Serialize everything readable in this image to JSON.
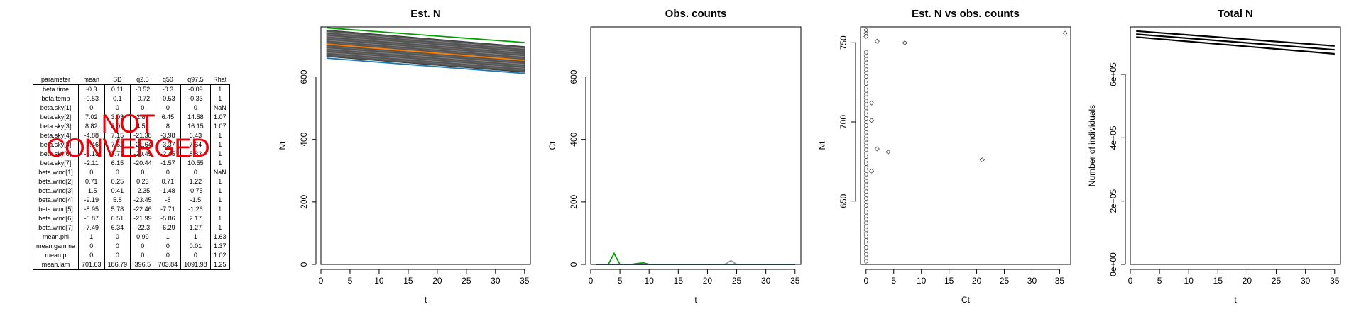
{
  "table": {
    "headers": [
      "parameter",
      "mean",
      "SD",
      "q2.5",
      "q50",
      "q97.5",
      "Rhat"
    ],
    "rows": [
      [
        "beta.time",
        "-0.3",
        "0.11",
        "-0.52",
        "-0.3",
        "-0.09",
        "1"
      ],
      [
        "beta.temp",
        "-0.53",
        "0.1",
        "-0.72",
        "-0.53",
        "-0.33",
        "1"
      ],
      [
        "beta.sky[1]",
        "0",
        "0",
        "0",
        "0",
        "0",
        "NaN"
      ],
      [
        "beta.sky[2]",
        "7.02",
        "3.03",
        "2.87",
        "6.45",
        "14.58",
        "1.07"
      ],
      [
        "beta.sky[3]",
        "8.82",
        "3.01",
        "4.53",
        "8",
        "16.15",
        "1.07"
      ],
      [
        "beta.sky[4]",
        "-4.88",
        "7.15",
        "-21.38",
        "-3.98",
        "6.43",
        "1"
      ],
      [
        "beta.sky[5]",
        "-4.46",
        "7.62",
        "-21.64",
        "-3.37",
        "7.64",
        "1"
      ],
      [
        "beta.sky[6]",
        "-3.18",
        "7.77",
        "-20.45",
        "-2.45",
        "8.83",
        "1"
      ],
      [
        "beta.sky[7]",
        "-2.11",
        "6.15",
        "-20.44",
        "-1.57",
        "10.55",
        "1"
      ],
      [
        "beta.wind[1]",
        "0",
        "0",
        "0",
        "0",
        "0",
        "NaN"
      ],
      [
        "beta.wind[2]",
        "0.71",
        "0.25",
        "0.23",
        "0.71",
        "1.22",
        "1"
      ],
      [
        "beta.wind[3]",
        "-1.5",
        "0.41",
        "-2.35",
        "-1.48",
        "-0.75",
        "1"
      ],
      [
        "beta.wind[4]",
        "-9.19",
        "5.8",
        "-23.45",
        "-8",
        "-1.5",
        "1"
      ],
      [
        "beta.wind[5]",
        "-8.95",
        "5.78",
        "-22.46",
        "-7.71",
        "-1.26",
        "1"
      ],
      [
        "beta.wind[6]",
        "-6.87",
        "6.51",
        "-21.99",
        "-5.86",
        "2.17",
        "1"
      ],
      [
        "beta.wind[7]",
        "-7.49",
        "6.34",
        "-22.3",
        "-6.29",
        "1.27",
        "1"
      ],
      [
        "mean.phi",
        "1",
        "0",
        "0.99",
        "1",
        "1",
        "1.63"
      ],
      [
        "mean.gamma",
        "0",
        "0",
        "0",
        "0",
        "0.01",
        "1.37"
      ],
      [
        "mean.p",
        "0",
        "0",
        "0",
        "0",
        "0",
        "1.02"
      ],
      [
        "mean.lam",
        "701.63",
        "186.79",
        "396.5",
        "703.84",
        "1091.98",
        "1.25"
      ]
    ]
  },
  "stamp": {
    "line1": "NOT",
    "line2": "CONVERGED",
    "color": "#e8000b"
  },
  "chart_data": [
    {
      "type": "line",
      "title": "Est. N",
      "xlabel": "t",
      "ylabel": "Nt",
      "xlim": [
        0,
        36
      ],
      "ylim": [
        0,
        760
      ],
      "xticks": [
        0,
        5,
        10,
        15,
        20,
        25,
        30,
        35
      ],
      "yticks": [
        0,
        200,
        400,
        600
      ],
      "x": [
        1,
        35
      ],
      "series": [
        {
          "color": "#00a000",
          "values": [
            757,
            710
          ]
        },
        {
          "color": "#ff7f00",
          "values": [
            705,
            653
          ]
        },
        {
          "color": "#1f78b4",
          "values": [
            660,
            611
          ]
        }
      ],
      "band": {
        "color": "#555555",
        "upper": [
          750,
          697
        ],
        "lower": [
          665,
          615
        ]
      }
    },
    {
      "type": "line",
      "title": "Obs. counts",
      "xlabel": "t",
      "ylabel": "Ct",
      "xlim": [
        0,
        36
      ],
      "ylim": [
        0,
        760
      ],
      "xticks": [
        0,
        5,
        10,
        15,
        20,
        25,
        30,
        35
      ],
      "yticks": [
        0,
        200,
        400,
        600
      ],
      "x": [
        1,
        2,
        3,
        4,
        5,
        6,
        7,
        8,
        9,
        10,
        11,
        12,
        13,
        14,
        15,
        16,
        17,
        18,
        19,
        20,
        21,
        22,
        23,
        24,
        25,
        26,
        27,
        28,
        29,
        30,
        31,
        32,
        33,
        34,
        35
      ],
      "series": [
        {
          "color": "#999999",
          "values": [
            0,
            0,
            0,
            0,
            0,
            0,
            0,
            0,
            0,
            0,
            0,
            0,
            0,
            0,
            0,
            0,
            0,
            0,
            0,
            0,
            0,
            0,
            0,
            12,
            0,
            0,
            0,
            0,
            0,
            0,
            0,
            0,
            0,
            0,
            0
          ]
        },
        {
          "color": "#00a000",
          "values": [
            0,
            0,
            0,
            35,
            0,
            0,
            0,
            3,
            5,
            0,
            0,
            0,
            0,
            0,
            0,
            0,
            0,
            0,
            0,
            0,
            0,
            0,
            0,
            0,
            0,
            0,
            0,
            0,
            0,
            0,
            0,
            0,
            0,
            0,
            0
          ]
        },
        {
          "color": "#ff7f00",
          "values": [
            0,
            0,
            0,
            0,
            0,
            0,
            0,
            0,
            0,
            0,
            0,
            0,
            0,
            0,
            0,
            0,
            0,
            0,
            0,
            0,
            0,
            0,
            0,
            0,
            0,
            0,
            0,
            0,
            0,
            0,
            0,
            0,
            0,
            0,
            0
          ]
        },
        {
          "color": "#1f78b4",
          "values": [
            0,
            0,
            0,
            0,
            0,
            0,
            0,
            0,
            0,
            0,
            0,
            0,
            0,
            0,
            0,
            0,
            0,
            0,
            0,
            0,
            0,
            0,
            0,
            0,
            0,
            0,
            0,
            0,
            0,
            0,
            0,
            0,
            0,
            0,
            0
          ]
        }
      ]
    },
    {
      "type": "scatter",
      "title": "Est. N vs obs. counts",
      "xlabel": "Ct",
      "ylabel": "Nt",
      "xlim": [
        -1,
        37
      ],
      "ylim": [
        610,
        760
      ],
      "xticks": [
        0,
        5,
        10,
        15,
        20,
        25,
        30,
        35
      ],
      "yticks": [
        650,
        700,
        750
      ],
      "points": [
        [
          0,
          758
        ],
        [
          0,
          756
        ],
        [
          0,
          754
        ],
        [
          1,
          712
        ],
        [
          1,
          701
        ],
        [
          1,
          669
        ],
        [
          2,
          751
        ],
        [
          2,
          683
        ],
        [
          4,
          681
        ],
        [
          7,
          750
        ],
        [
          21,
          676
        ],
        [
          36,
          756
        ]
      ],
      "column_at_zero": {
        "x": 0,
        "from": 612,
        "to": 745
      }
    },
    {
      "type": "line",
      "title": "Total N",
      "xlabel": "t",
      "ylabel": "Number of individuals",
      "xlim": [
        0,
        36
      ],
      "ylim": [
        0,
        750000
      ],
      "xticks": [
        0,
        5,
        10,
        15,
        20,
        25,
        30,
        35
      ],
      "yticks": [
        0,
        200000,
        400000,
        600000
      ],
      "ytick_labels": [
        "0e+00",
        "2e+05",
        "4e+05",
        "6e+05"
      ],
      "x": [
        1,
        35
      ],
      "series": [
        {
          "color": "#000000",
          "values": [
            737000,
            690000
          ]
        },
        {
          "color": "#000000",
          "values": [
            727000,
            678000
          ]
        },
        {
          "color": "#000000",
          "values": [
            718000,
            665000
          ]
        }
      ]
    }
  ]
}
